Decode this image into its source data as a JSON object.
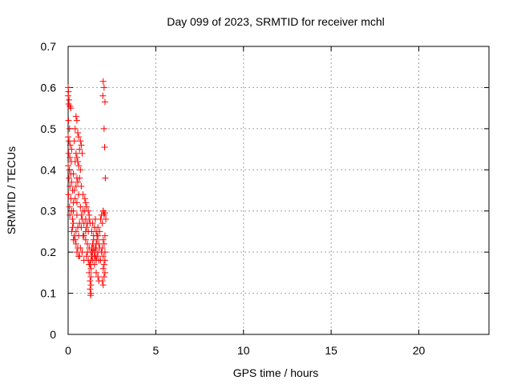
{
  "chart_data": {
    "type": "scatter",
    "title": "Day 099 of 2023, SRMTID for receiver mchl",
    "xlabel": "GPS time / hours",
    "ylabel": "SRMTID / TECUs",
    "xlim": [
      0,
      24
    ],
    "ylim": [
      0,
      0.7
    ],
    "xticks": [
      0,
      5,
      10,
      15,
      20
    ],
    "yticks": [
      0,
      0.1,
      0.2,
      0.3,
      0.4,
      0.5,
      0.6,
      0.7
    ],
    "xtick_labels": [
      "0",
      "5",
      "10",
      "15",
      "20"
    ],
    "ytick_labels": [
      "0",
      "0.1",
      "0.2",
      "0.3",
      "0.4",
      "0.5",
      "0.6",
      "0.7"
    ],
    "grid": true,
    "marker": "+",
    "color": "#ff0000",
    "points": [
      [
        0.0,
        0.6
      ],
      [
        0.02,
        0.59
      ],
      [
        0.0,
        0.58
      ],
      [
        0.05,
        0.57
      ],
      [
        0.03,
        0.56
      ],
      [
        0.1,
        0.555
      ],
      [
        0.15,
        0.55
      ],
      [
        0.02,
        0.52
      ],
      [
        0.08,
        0.5
      ],
      [
        0.0,
        0.48
      ],
      [
        0.05,
        0.47
      ],
      [
        0.12,
        0.46
      ],
      [
        0.2,
        0.45
      ],
      [
        0.03,
        0.44
      ],
      [
        0.1,
        0.43
      ],
      [
        0.18,
        0.42
      ],
      [
        0.0,
        0.41
      ],
      [
        0.07,
        0.4
      ],
      [
        0.15,
        0.39
      ],
      [
        0.05,
        0.38
      ],
      [
        0.2,
        0.37
      ],
      [
        0.1,
        0.36
      ],
      [
        0.25,
        0.35
      ],
      [
        0.02,
        0.34
      ],
      [
        0.15,
        0.33
      ],
      [
        0.3,
        0.32
      ],
      [
        0.08,
        0.31
      ],
      [
        0.2,
        0.3
      ],
      [
        0.1,
        0.29
      ],
      [
        0.25,
        0.28
      ],
      [
        0.35,
        0.47
      ],
      [
        0.45,
        0.53
      ],
      [
        0.5,
        0.52
      ],
      [
        0.4,
        0.5
      ],
      [
        0.55,
        0.49
      ],
      [
        0.6,
        0.48
      ],
      [
        0.7,
        0.47
      ],
      [
        0.75,
        0.46
      ],
      [
        0.65,
        0.45
      ],
      [
        0.8,
        0.44
      ],
      [
        0.5,
        0.43
      ],
      [
        0.4,
        0.42
      ],
      [
        0.6,
        0.41
      ],
      [
        0.7,
        0.4
      ],
      [
        0.3,
        0.39
      ],
      [
        0.5,
        0.38
      ],
      [
        0.55,
        0.37
      ],
      [
        0.45,
        0.36
      ],
      [
        0.35,
        0.35
      ],
      [
        0.6,
        0.34
      ],
      [
        0.4,
        0.33
      ],
      [
        0.5,
        0.32
      ],
      [
        0.7,
        0.31
      ],
      [
        0.3,
        0.3
      ],
      [
        0.5,
        0.29
      ],
      [
        0.8,
        0.28
      ],
      [
        0.9,
        0.27
      ],
      [
        0.75,
        0.26
      ],
      [
        1.0,
        0.25
      ],
      [
        0.85,
        0.24
      ],
      [
        0.4,
        0.23
      ],
      [
        0.6,
        0.24
      ],
      [
        0.45,
        0.22
      ],
      [
        0.7,
        0.21
      ],
      [
        0.5,
        0.2
      ],
      [
        0.65,
        0.19
      ],
      [
        0.8,
        0.2
      ],
      [
        0.55,
        0.21
      ],
      [
        0.9,
        0.18
      ],
      [
        0.6,
        0.19
      ],
      [
        1.0,
        0.28
      ],
      [
        1.1,
        0.27
      ],
      [
        1.2,
        0.29
      ],
      [
        0.95,
        0.3
      ],
      [
        1.05,
        0.26
      ],
      [
        1.15,
        0.25
      ],
      [
        1.25,
        0.27
      ],
      [
        0.9,
        0.24
      ],
      [
        1.0,
        0.23
      ],
      [
        1.1,
        0.22
      ],
      [
        1.2,
        0.21
      ],
      [
        1.3,
        0.2
      ],
      [
        1.35,
        0.19
      ],
      [
        1.4,
        0.18
      ],
      [
        1.25,
        0.17
      ],
      [
        1.3,
        0.16
      ],
      [
        1.2,
        0.15
      ],
      [
        1.3,
        0.14
      ],
      [
        1.25,
        0.13
      ],
      [
        1.3,
        0.12
      ],
      [
        1.25,
        0.11
      ],
      [
        1.3,
        0.1
      ],
      [
        1.28,
        0.095
      ],
      [
        1.4,
        0.22
      ],
      [
        1.45,
        0.21
      ],
      [
        1.5,
        0.2
      ],
      [
        1.55,
        0.19
      ],
      [
        1.6,
        0.18
      ],
      [
        1.5,
        0.17
      ],
      [
        1.45,
        0.23
      ],
      [
        1.6,
        0.25
      ],
      [
        1.7,
        0.26
      ],
      [
        1.65,
        0.24
      ],
      [
        1.75,
        0.22
      ],
      [
        1.8,
        0.21
      ],
      [
        1.7,
        0.2
      ],
      [
        1.65,
        0.19
      ],
      [
        1.6,
        0.15
      ],
      [
        1.7,
        0.14
      ],
      [
        1.75,
        0.13
      ],
      [
        1.85,
        0.28
      ],
      [
        1.9,
        0.29
      ],
      [
        2.0,
        0.3
      ],
      [
        2.05,
        0.29
      ],
      [
        1.95,
        0.27
      ],
      [
        2.1,
        0.24
      ],
      [
        2.0,
        0.23
      ],
      [
        2.05,
        0.22
      ],
      [
        1.95,
        0.21
      ],
      [
        2.1,
        0.2
      ],
      [
        2.0,
        0.19
      ],
      [
        2.1,
        0.18
      ],
      [
        2.05,
        0.17
      ],
      [
        2.0,
        0.16
      ],
      [
        2.1,
        0.15
      ],
      [
        2.05,
        0.14
      ],
      [
        1.95,
        0.13
      ],
      [
        2.0,
        0.12
      ],
      [
        1.9,
        0.2
      ],
      [
        1.85,
        0.18
      ],
      [
        2.0,
        0.615
      ],
      [
        2.05,
        0.6
      ],
      [
        1.98,
        0.58
      ],
      [
        2.1,
        0.565
      ],
      [
        2.05,
        0.5
      ],
      [
        2.08,
        0.455
      ],
      [
        2.12,
        0.38
      ],
      [
        2.0,
        0.3
      ],
      [
        2.1,
        0.295
      ],
      [
        2.15,
        0.28
      ],
      [
        1.0,
        0.32
      ],
      [
        1.05,
        0.31
      ],
      [
        0.95,
        0.33
      ],
      [
        1.15,
        0.3
      ],
      [
        1.2,
        0.28
      ],
      [
        0.85,
        0.34
      ],
      [
        0.75,
        0.36
      ],
      [
        0.65,
        0.38
      ],
      [
        0.55,
        0.42
      ],
      [
        0.45,
        0.44
      ],
      [
        1.5,
        0.26
      ],
      [
        1.55,
        0.28
      ],
      [
        1.4,
        0.27
      ],
      [
        1.35,
        0.25
      ],
      [
        1.45,
        0.24
      ],
      [
        1.6,
        0.22
      ],
      [
        1.55,
        0.21
      ],
      [
        1.65,
        0.23
      ],
      [
        1.7,
        0.24
      ],
      [
        1.8,
        0.25
      ],
      [
        0.3,
        0.27
      ],
      [
        0.25,
        0.26
      ],
      [
        0.2,
        0.25
      ],
      [
        0.35,
        0.24
      ],
      [
        0.3,
        0.23
      ],
      [
        0.45,
        0.25
      ],
      [
        0.55,
        0.26
      ],
      [
        0.65,
        0.27
      ],
      [
        0.75,
        0.29
      ],
      [
        0.85,
        0.3
      ],
      [
        1.05,
        0.19
      ],
      [
        1.1,
        0.2
      ],
      [
        1.15,
        0.18
      ],
      [
        1.2,
        0.17
      ],
      [
        1.3,
        0.18
      ],
      [
        1.35,
        0.21
      ],
      [
        1.4,
        0.2
      ],
      [
        1.5,
        0.19
      ],
      [
        1.6,
        0.21
      ],
      [
        1.75,
        0.18
      ]
    ]
  }
}
